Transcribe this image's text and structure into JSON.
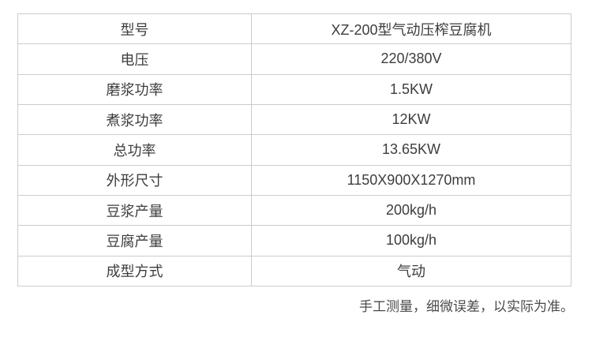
{
  "spec_table": {
    "rows": [
      {
        "label": "型号",
        "value": "XZ-200型气动压榨豆腐机"
      },
      {
        "label": "电压",
        "value": "220/380V"
      },
      {
        "label": "磨浆功率",
        "value": "1.5KW"
      },
      {
        "label": "煮浆功率",
        "value": "12KW"
      },
      {
        "label": "总功率",
        "value": "13.65KW"
      },
      {
        "label": "外形尺寸",
        "value": "1150X900X1270mm"
      },
      {
        "label": "豆浆产量",
        "value": "200kg/h"
      },
      {
        "label": "豆腐产量",
        "value": "100kg/h"
      },
      {
        "label": "成型方式",
        "value": "气动"
      }
    ]
  },
  "footer": {
    "note": "手工测量，细微误差，以实际为准。"
  },
  "colors": {
    "border": "#cccccc",
    "cell_text": "#3d3d3d",
    "note_text": "#4a4a4a",
    "background": "#ffffff"
  }
}
